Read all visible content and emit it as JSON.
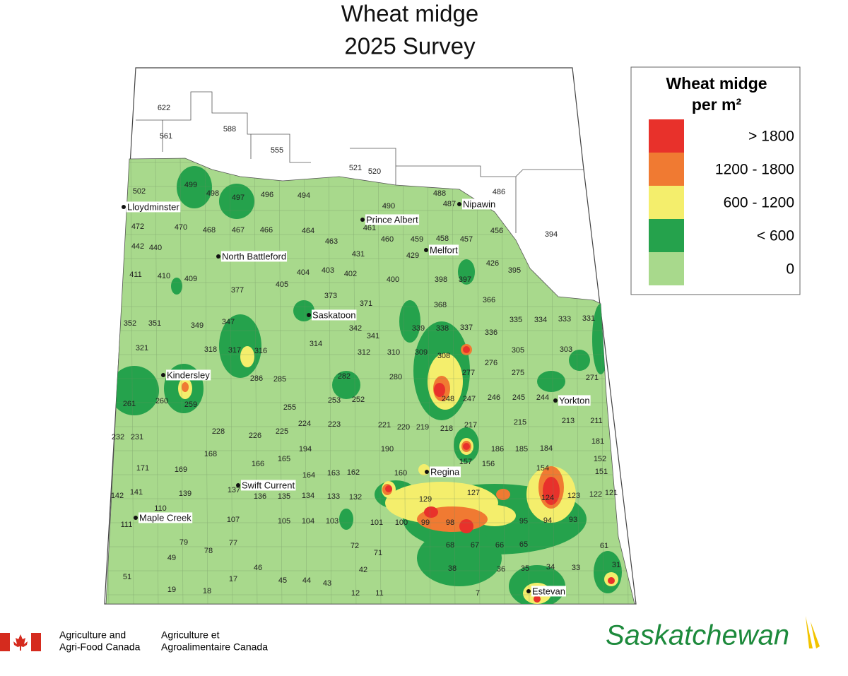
{
  "title": [
    "Wheat midge",
    "2025 Survey"
  ],
  "legend": {
    "title": [
      "Wheat midge",
      "per m²"
    ],
    "items": [
      {
        "label": "> 1800",
        "color": "#e8312b"
      },
      {
        "label": "1200 - 1800",
        "color": "#f07a32"
      },
      {
        "label": "600 - 1200",
        "color": "#f4ee6c"
      },
      {
        "label": "< 600",
        "color": "#25a24c"
      },
      {
        "label": "0",
        "color": "#a8d98c"
      }
    ]
  },
  "cities": [
    "Lloydminster",
    "Nipawin",
    "Prince Albert",
    "North Battleford",
    "Melfort",
    "Saskatoon",
    "Kindersley",
    "Yorkton",
    "Regina",
    "Swift Current",
    "Maple Creek",
    "Estevan"
  ],
  "municipalities": [
    "622",
    "561",
    "588",
    "555",
    "521",
    "520",
    "488",
    "486",
    "394",
    "499",
    "502",
    "498",
    "497",
    "496",
    "494",
    "490",
    "487",
    "472",
    "470",
    "468",
    "467",
    "466",
    "464",
    "463",
    "461",
    "460",
    "459",
    "458",
    "457",
    "456",
    "442",
    "440",
    "431",
    "429",
    "426",
    "395",
    "411",
    "410",
    "409",
    "405",
    "404",
    "403",
    "402",
    "400",
    "398",
    "397",
    "377",
    "373",
    "371",
    "368",
    "366",
    "335",
    "334",
    "333",
    "331",
    "352",
    "351",
    "349",
    "347",
    "342",
    "341",
    "339",
    "338",
    "337",
    "336",
    "314",
    "312",
    "310",
    "309",
    "308",
    "305",
    "303",
    "318",
    "317",
    "316",
    "321",
    "286",
    "285",
    "282",
    "280",
    "277",
    "276",
    "275",
    "271",
    "261",
    "260",
    "259",
    "255",
    "253",
    "252",
    "248",
    "247",
    "246",
    "245",
    "244",
    "232",
    "231",
    "228",
    "226",
    "225",
    "224",
    "223",
    "221",
    "220",
    "219",
    "218",
    "217",
    "215",
    "213",
    "211",
    "194",
    "190",
    "186",
    "185",
    "184",
    "181",
    "171",
    "169",
    "168",
    "166",
    "165",
    "164",
    "163",
    "162",
    "160",
    "157",
    "156",
    "154",
    "152",
    "151",
    "142",
    "141",
    "139",
    "137",
    "136",
    "135",
    "134",
    "133",
    "132",
    "129",
    "127",
    "124",
    "123",
    "122",
    "121",
    "110",
    "111",
    "107",
    "105",
    "104",
    "103",
    "101",
    "100",
    "99",
    "98",
    "95",
    "94",
    "93",
    "79",
    "78",
    "77",
    "72",
    "71",
    "68",
    "67",
    "66",
    "65",
    "61",
    "51",
    "49",
    "46",
    "45",
    "44",
    "43",
    "42",
    "38",
    "36",
    "35",
    "34",
    "33",
    "31",
    "19",
    "18",
    "17",
    "12",
    "11",
    "7"
  ],
  "footer": {
    "federal_en": [
      "Agriculture and",
      "Agri-Food Canada"
    ],
    "federal_fr": [
      "Agriculture et",
      "Agroalimentaire Canada"
    ],
    "province": "Saskatchewan"
  }
}
